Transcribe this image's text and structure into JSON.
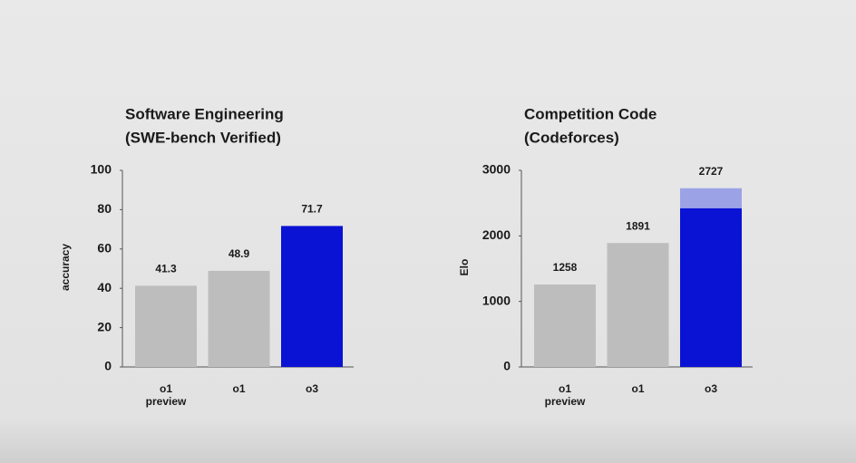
{
  "chart_data": [
    {
      "type": "bar",
      "title": "Software Engineering",
      "subtitle": "(SWE-bench Verified)",
      "y_label": "accuracy",
      "categories": [
        "o1 preview",
        "o1",
        "o3"
      ],
      "series": [
        {
          "values": [
            41.3,
            48.9,
            71.7
          ],
          "colors": [
            "#bdbdbd",
            "#bdbdbd",
            "#0a12d4"
          ]
        }
      ],
      "ylim": [
        0,
        100
      ],
      "yticks": [
        0,
        20,
        40,
        60,
        80,
        100
      ]
    },
    {
      "type": "bar",
      "title": "Competition Code",
      "subtitle": "(Codeforces)",
      "y_label": "Elo",
      "categories": [
        "o1 preview",
        "o1",
        "o3"
      ],
      "series": [
        {
          "values": [
            1258,
            1891,
            2727
          ],
          "colors": [
            "#bdbdbd",
            "#bdbdbd",
            "#9ba2e6"
          ]
        },
        {
          "values": [
            null,
            null,
            2420
          ],
          "colors": [
            null,
            null,
            "#0a12d4"
          ],
          "overlay": true
        }
      ],
      "ylim": [
        0,
        3000
      ],
      "yticks": [
        0,
        1000,
        2000,
        3000
      ]
    }
  ]
}
